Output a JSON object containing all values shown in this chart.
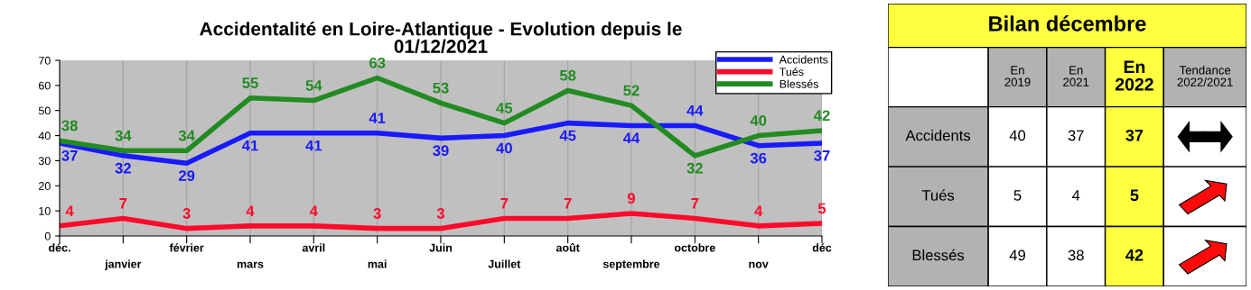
{
  "chart_data": [
    {
      "type": "line",
      "title": "Accidentalité en Loire-Atlantique - Evolution depuis le\n01/12/2021",
      "categories": [
        "déc.",
        "janvier",
        "février",
        "mars",
        "avril",
        "mai",
        "Juin",
        "Juillet",
        "août",
        "septembre",
        "octobre",
        "nov",
        "déc"
      ],
      "series": [
        {
          "name": "Accidents",
          "color": "#1a1aff",
          "values": [
            37,
            32,
            29,
            41,
            41,
            41,
            39,
            40,
            45,
            44,
            44,
            36,
            37
          ]
        },
        {
          "name": "Tués",
          "color": "#ff0a2a",
          "values": [
            4,
            7,
            3,
            4,
            4,
            3,
            3,
            7,
            7,
            9,
            7,
            4,
            5
          ]
        },
        {
          "name": "Blessés",
          "color": "#228b22",
          "values": [
            38,
            34,
            34,
            55,
            54,
            63,
            53,
            45,
            58,
            52,
            32,
            40,
            42
          ]
        }
      ],
      "ylim": [
        0,
        70
      ],
      "yticks": [
        0,
        10,
        20,
        30,
        40,
        50,
        60,
        70
      ],
      "grid": "x",
      "legend": "top right",
      "data_labels": true,
      "marker": "none",
      "line_style": "solid"
    },
    {
      "type": "heatmap",
      "title": "Bilan décembre",
      "categories": [
        "En\n2019",
        "En\n2021",
        "En\n2022",
        "Tendance\n2022/2021"
      ],
      "y_categories": [
        "Accidents",
        "Tués",
        "Blessés"
      ],
      "cells": [
        [
          40,
          37,
          37,
          null
        ],
        [
          5,
          4,
          5,
          null
        ],
        [
          49,
          38,
          42,
          null
        ]
      ],
      "data_labels": true
    }
  ]
}
